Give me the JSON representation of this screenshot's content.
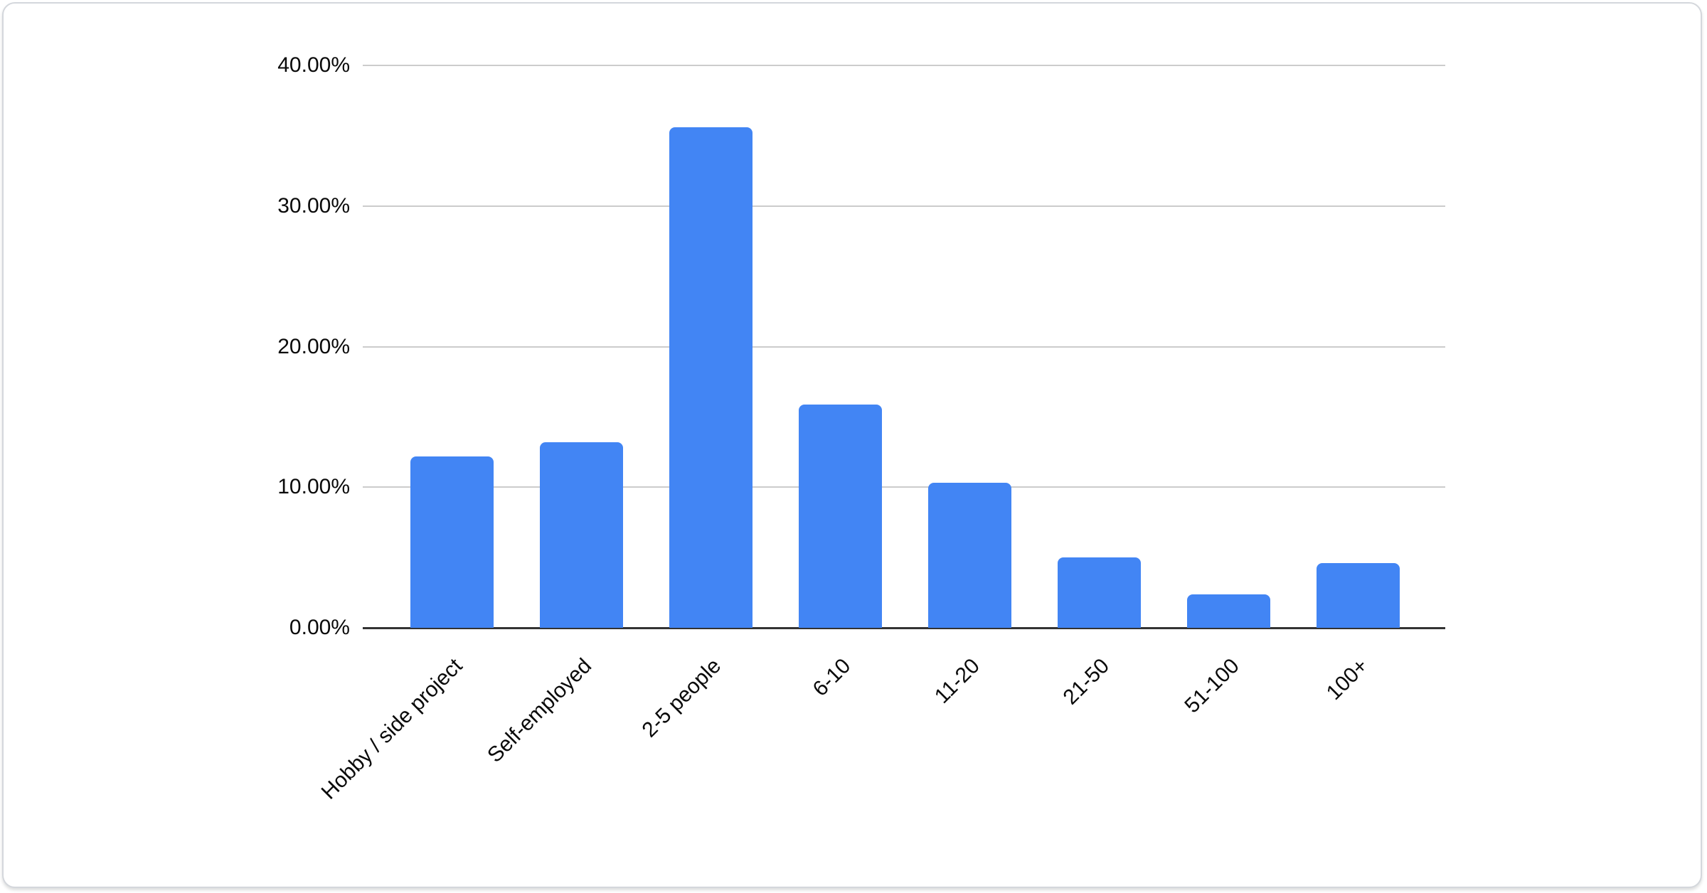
{
  "chart_data": {
    "type": "bar",
    "title": "",
    "xlabel": "",
    "ylabel": "",
    "categories": [
      "Hobby / side project",
      "Self-employed",
      "2-5 people",
      "6-10",
      "11-20",
      "21-50",
      "51-100",
      "100+"
    ],
    "values": [
      12.2,
      13.2,
      35.6,
      15.9,
      10.3,
      5.0,
      2.4,
      4.6
    ],
    "unit": "%",
    "ylim": [
      0,
      40
    ],
    "y_ticks": [
      0,
      10,
      20,
      30,
      40
    ],
    "y_tick_labels": [
      "0.00%",
      "10.00%",
      "20.00%",
      "30.00%",
      "40.00%"
    ],
    "grid": true,
    "legend": "none",
    "colors": {
      "bar": "#4285f4",
      "gridline": "#cccccc",
      "baseline": "#333333",
      "text": "#0a0a0a"
    }
  }
}
